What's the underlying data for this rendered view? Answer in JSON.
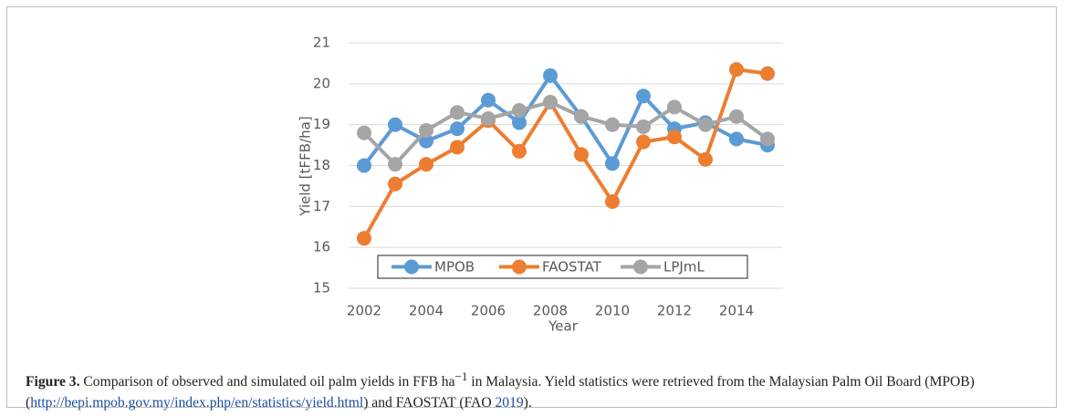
{
  "chart_data": {
    "type": "line",
    "xlabel": "Year",
    "ylabel": "Yield [tFFB/ha]",
    "categories": [
      "2002",
      null,
      "2004",
      null,
      "2006",
      null,
      "2008",
      null,
      "2010",
      null,
      "2012",
      null,
      "2014",
      null
    ],
    "series": [
      {
        "name": "MPOB",
        "color": "#5b9bd5",
        "values": [
          18.0,
          19.0,
          18.6,
          18.9,
          19.6,
          19.05,
          20.2,
          19.2,
          18.05,
          19.7,
          18.9,
          19.05,
          18.65,
          18.5
        ]
      },
      {
        "name": "FAOSTAT",
        "color": "#ed7d31",
        "values": [
          16.22,
          17.55,
          18.03,
          18.45,
          19.1,
          18.35,
          19.55,
          18.27,
          17.12,
          18.58,
          18.7,
          18.15,
          20.35,
          20.25
        ]
      },
      {
        "name": "LPJmL",
        "color": "#a5a5a5",
        "values": [
          18.8,
          18.03,
          18.86,
          19.3,
          19.15,
          19.35,
          19.55,
          19.2,
          19.0,
          18.95,
          19.43,
          19.0,
          19.2,
          18.65
        ]
      }
    ],
    "ylim": [
      15,
      21
    ],
    "yticks": [
      15,
      16,
      17,
      18,
      19,
      20,
      21
    ],
    "grid": true,
    "legend": "bottom"
  },
  "caption": {
    "label": "Figure 3.",
    "text1": " Comparison of observed and simulated oil palm yields in FFB ha",
    "sup": "−1",
    "text2": " in Malaysia. Yield statistics were retrieved from the Malaysian Palm Oil Board (MPOB) (",
    "link1": "http://bepi.mpob.gov.my/index.php/en/statistics/yield.html",
    "text3": ") and FAOSTAT (FAO ",
    "link2": "2019",
    "text4": ")."
  }
}
